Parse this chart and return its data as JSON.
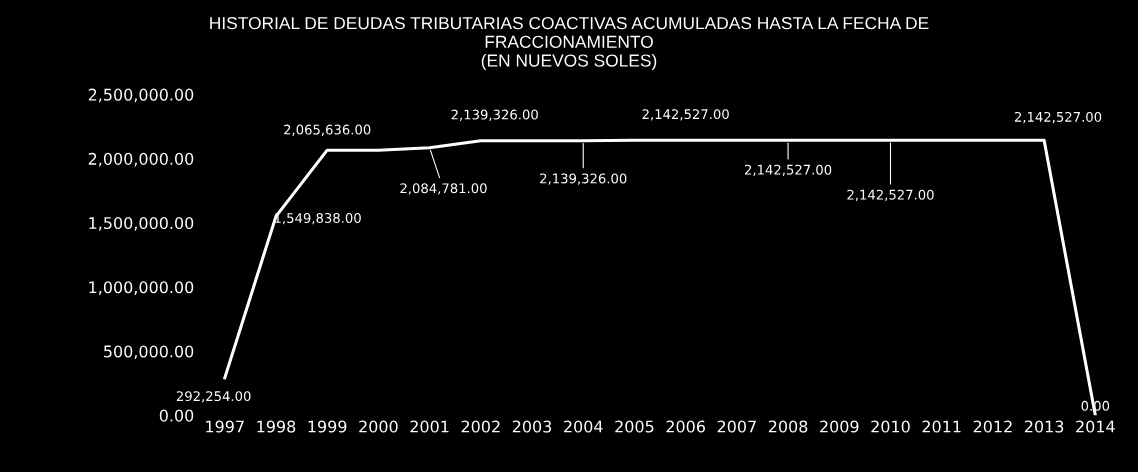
{
  "chart_data": {
    "type": "line",
    "title": "HISTORIAL DE DEUDAS TRIBUTARIAS COACTIVAS ACUMULADAS HASTA LA FECHA DE\nFRACCIONAMIENTO\n(EN NUEVOS SOLES)",
    "categories": [
      "1997",
      "1998",
      "1999",
      "2000",
      "2001",
      "2002",
      "2003",
      "2004",
      "2005",
      "2006",
      "2007",
      "2008",
      "2009",
      "2010",
      "2011",
      "2012",
      "2013",
      "2014"
    ],
    "series": [
      {
        "color": "#ffffff",
        "values": [
          292254,
          1549838,
          2065636,
          2065636,
          2084781,
          2139326,
          2139326,
          2139326,
          2142527,
          2142527,
          2142527,
          2142527,
          2142527,
          2142527,
          2142527,
          2142527,
          2142527,
          0
        ],
        "value_labels": [
          "292,254.00",
          "1,549,838.00",
          "2,065,636.00",
          null,
          "2,084,781.00",
          "2,139,326.00",
          null,
          "2,139,326.00",
          null,
          "2,142,527.00",
          null,
          "2,142,527.00",
          null,
          "2,142,527.00",
          null,
          null,
          "2,142,527.00",
          "0.00"
        ]
      }
    ],
    "ylim": [
      0,
      2500000
    ],
    "yticks": [
      {
        "value": 0,
        "label": "0.00"
      },
      {
        "value": 500000,
        "label": "500,000.00"
      },
      {
        "value": 1000000,
        "label": "1,000,000.00"
      },
      {
        "value": 1500000,
        "label": "1,500,000.00"
      },
      {
        "value": 2000000,
        "label": "2,000,000.00"
      },
      {
        "value": 2500000,
        "label": "2,500,000.00"
      }
    ],
    "grid": false,
    "legend": false,
    "marker": "none",
    "line_style": "solid"
  }
}
